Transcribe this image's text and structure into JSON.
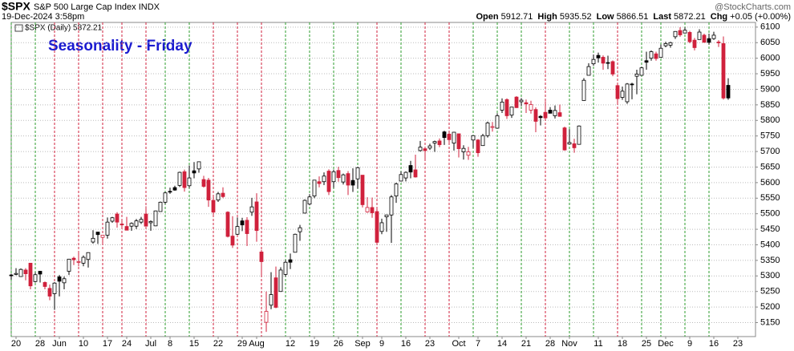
{
  "chart_data": {
    "type": "candlestick",
    "symbol": "$SPX",
    "name": "S&P 500 Large Cap Index",
    "exchange": "INDX",
    "timestamp": "19-Dec-2024 3:58pm",
    "credit": "@StockCharts.com",
    "quote": [
      {
        "label": "Open",
        "value": 5912.71
      },
      {
        "label": "High",
        "value": 5935.52
      },
      {
        "label": "Low",
        "value": 5866.51
      },
      {
        "label": "Last",
        "value": 5872.21
      },
      {
        "label": "Chg",
        "value": "+0.05 (+0.00%)"
      }
    ],
    "legend": "$SPX (Daily) 5872.21",
    "title": "Seasonality - Friday",
    "up_color": "#000000",
    "down_color": "#d0213c",
    "title_color": "#1a1ad0",
    "ylim": [
      5105,
      6115
    ],
    "yticks": [
      5150,
      5200,
      5250,
      5300,
      5350,
      5400,
      5450,
      5500,
      5550,
      5600,
      5650,
      5700,
      5750,
      5800,
      5850,
      5900,
      5950,
      6000,
      6050,
      6100
    ],
    "grid": true,
    "categories": [
      null,
      "20",
      null,
      null,
      null,
      null,
      "28",
      null,
      null,
      null,
      "Jun",
      null,
      null,
      null,
      null,
      "10",
      null,
      null,
      null,
      null,
      "17",
      null,
      null,
      null,
      "24",
      null,
      null,
      null,
      null,
      "Jul",
      null,
      null,
      null,
      "8",
      null,
      null,
      null,
      null,
      "15",
      null,
      null,
      null,
      null,
      "22",
      null,
      null,
      null,
      null,
      "29",
      null,
      null,
      "Aug",
      null,
      null,
      null,
      null,
      null,
      null,
      "12",
      null,
      null,
      null,
      null,
      "19",
      null,
      null,
      null,
      null,
      "26",
      null,
      null,
      null,
      null,
      "Sep",
      null,
      null,
      null,
      "9",
      null,
      null,
      null,
      null,
      "16",
      null,
      null,
      null,
      null,
      "23",
      null,
      null,
      null,
      null,
      null,
      "Oct",
      null,
      null,
      null,
      "7",
      null,
      null,
      null,
      null,
      "14",
      null,
      null,
      null,
      null,
      "21",
      null,
      null,
      null,
      null,
      "28",
      null,
      null,
      null,
      "Nov",
      null,
      null,
      null,
      null,
      null,
      "11",
      null,
      null,
      null,
      null,
      "18",
      null,
      null,
      null,
      null,
      "25",
      null,
      null,
      null,
      "Dec",
      null,
      null,
      null,
      null,
      "9",
      null,
      null,
      null,
      null,
      "16",
      null,
      null,
      null,
      null,
      "23"
    ],
    "ohlc": [
      [
        5303,
        5306,
        5288,
        5303
      ],
      [
        5305,
        5325,
        5302,
        5308
      ],
      [
        5298,
        5324,
        5297,
        5321
      ],
      [
        5319,
        5325,
        5286,
        5307
      ],
      [
        5341,
        5342,
        5257,
        5268
      ],
      [
        5282,
        5311,
        5279,
        5304
      ],
      [
        5315,
        5316,
        5279,
        5306
      ],
      [
        5279,
        5282,
        5257,
        5266
      ],
      [
        5260,
        5272,
        5222,
        5235
      ],
      [
        5243,
        5280,
        5191,
        5277
      ],
      [
        5297,
        5303,
        5234,
        5283
      ],
      [
        5278,
        5298,
        5257,
        5291
      ],
      [
        5315,
        5355,
        5303,
        5354
      ],
      [
        5357,
        5362,
        5335,
        5352
      ],
      [
        5344,
        5376,
        5331,
        5346
      ],
      [
        5341,
        5366,
        5331,
        5360
      ],
      [
        5353,
        5376,
        5327,
        5375
      ],
      [
        5409,
        5447,
        5404,
        5421
      ],
      [
        5441,
        5441,
        5403,
        5433
      ],
      [
        5424,
        5432,
        5403,
        5431
      ],
      [
        5431,
        5488,
        5420,
        5473
      ],
      [
        5476,
        5490,
        5471,
        5487
      ],
      [
        5499,
        5505,
        5455,
        5473
      ],
      [
        5467,
        5479,
        5455,
        5464
      ],
      [
        5459,
        5490,
        5447,
        5447
      ],
      [
        5460,
        5472,
        5445,
        5469
      ],
      [
        5460,
        5483,
        5451,
        5477
      ],
      [
        5473,
        5490,
        5467,
        5482
      ],
      [
        5499,
        5524,
        5460,
        5460
      ],
      [
        5471,
        5479,
        5445,
        5475
      ],
      [
        5461,
        5510,
        5460,
        5509
      ],
      [
        5507,
        5539,
        5507,
        5537
      ],
      [
        5537,
        5570,
        5531,
        5567
      ],
      [
        5572,
        5584,
        5564,
        5572
      ],
      [
        5584,
        5590,
        5574,
        5576
      ],
      [
        5591,
        5635,
        5586,
        5633
      ],
      [
        5635,
        5642,
        5571,
        5584
      ],
      [
        5590,
        5655,
        5583,
        5615
      ],
      [
        5638,
        5666,
        5614,
        5631
      ],
      [
        5644,
        5667,
        5632,
        5667
      ],
      [
        5610,
        5622,
        5584,
        5588
      ],
      [
        5608,
        5615,
        5522,
        5544
      ],
      [
        5543,
        5557,
        5497,
        5505
      ],
      [
        5544,
        5570,
        5538,
        5564
      ],
      [
        5566,
        5585,
        5550,
        5555
      ],
      [
        5505,
        5508,
        5424,
        5427
      ],
      [
        5428,
        5492,
        5390,
        5399
      ],
      [
        5434,
        5488,
        5432,
        5459
      ],
      [
        5477,
        5487,
        5444,
        5464
      ],
      [
        5479,
        5489,
        5396,
        5436
      ],
      [
        5505,
        5551,
        5493,
        5522
      ],
      [
        5538,
        5566,
        5410,
        5446
      ],
      [
        5377,
        5384,
        5303,
        5346
      ],
      [
        5151,
        5250,
        5120,
        5186
      ],
      [
        5206,
        5312,
        5193,
        5240
      ],
      [
        5294,
        5330,
        5196,
        5199
      ],
      [
        5250,
        5328,
        5249,
        5319
      ],
      [
        5305,
        5351,
        5298,
        5344
      ],
      [
        5352,
        5372,
        5322,
        5344
      ],
      [
        5376,
        5436,
        5376,
        5434
      ],
      [
        5442,
        5464,
        5413,
        5455
      ],
      [
        5502,
        5546,
        5501,
        5543
      ],
      [
        5531,
        5563,
        5527,
        5554
      ],
      [
        5557,
        5608,
        5550,
        5608
      ],
      [
        5603,
        5620,
        5585,
        5597
      ],
      [
        5603,
        5633,
        5592,
        5621
      ],
      [
        5637,
        5643,
        5560,
        5571
      ],
      [
        5603,
        5642,
        5583,
        5635
      ],
      [
        5639,
        5651,
        5603,
        5616
      ],
      [
        5602,
        5629,
        5594,
        5625
      ],
      [
        5629,
        5637,
        5560,
        5592
      ],
      [
        5607,
        5646,
        5570,
        5592
      ],
      [
        5612,
        5651,
        5581,
        5648
      ],
      [
        5624,
        5624,
        5520,
        5529
      ],
      [
        5506,
        5553,
        5503,
        5520
      ],
      [
        5520,
        5552,
        5487,
        5503
      ],
      [
        5507,
        5522,
        5402,
        5408
      ],
      [
        5443,
        5484,
        5434,
        5471
      ],
      [
        5490,
        5497,
        5442,
        5496
      ],
      [
        5496,
        5560,
        5406,
        5554
      ],
      [
        5557,
        5600,
        5535,
        5596
      ],
      [
        5605,
        5636,
        5604,
        5626
      ],
      [
        5615,
        5636,
        5604,
        5633
      ],
      [
        5655,
        5670,
        5614,
        5634
      ],
      [
        5641,
        5690,
        5616,
        5618
      ],
      [
        5703,
        5734,
        5700,
        5714
      ],
      [
        5709,
        5715,
        5674,
        5703
      ],
      [
        5711,
        5725,
        5705,
        5718
      ],
      [
        5727,
        5735,
        5699,
        5732
      ],
      [
        5734,
        5742,
        5714,
        5722
      ],
      [
        5763,
        5767,
        5721,
        5745
      ],
      [
        5756,
        5765,
        5729,
        5738
      ],
      [
        5727,
        5763,
        5703,
        5762
      ],
      [
        5757,
        5757,
        5681,
        5709
      ],
      [
        5699,
        5720,
        5674,
        5710
      ],
      [
        5688,
        5715,
        5673,
        5699
      ],
      [
        5737,
        5752,
        5711,
        5751
      ],
      [
        5737,
        5740,
        5683,
        5696
      ],
      [
        5719,
        5757,
        5719,
        5751
      ],
      [
        5751,
        5796,
        5745,
        5792
      ],
      [
        5778,
        5795,
        5764,
        5780
      ],
      [
        5775,
        5823,
        5775,
        5815
      ],
      [
        5833,
        5871,
        5824,
        5859
      ],
      [
        5867,
        5871,
        5805,
        5815
      ],
      [
        5817,
        5843,
        5808,
        5843
      ],
      [
        5875,
        5878,
        5840,
        5841
      ],
      [
        5860,
        5872,
        5846,
        5865
      ],
      [
        5857,
        5867,
        5824,
        5853
      ],
      [
        5833,
        5863,
        5822,
        5851
      ],
      [
        5835,
        5842,
        5762,
        5797
      ],
      [
        5813,
        5817,
        5784,
        5809
      ],
      [
        5826,
        5862,
        5799,
        5808
      ],
      [
        5833,
        5843,
        5823,
        5823
      ],
      [
        5815,
        5848,
        5806,
        5832
      ],
      [
        5825,
        5851,
        5812,
        5813
      ],
      [
        5776,
        5780,
        5703,
        5705
      ],
      [
        5724,
        5772,
        5723,
        5729
      ],
      [
        5725,
        5741,
        5696,
        5712
      ],
      [
        5723,
        5784,
        5722,
        5782
      ],
      [
        5864,
        5936,
        5864,
        5929
      ],
      [
        5945,
        5984,
        5945,
        5973
      ],
      [
        5982,
        6012,
        5976,
        5996
      ],
      [
        6009,
        6018,
        5986,
        6001
      ],
      [
        6003,
        6009,
        5963,
        5984
      ],
      [
        5986,
        6008,
        5965,
        5985
      ],
      [
        5989,
        5993,
        5942,
        5949
      ],
      [
        5912,
        5915,
        5853,
        5870
      ],
      [
        5874,
        5909,
        5866,
        5894
      ],
      [
        5860,
        5920,
        5853,
        5917
      ],
      [
        5917,
        5921,
        5868,
        5917
      ],
      [
        5942,
        5963,
        5884,
        5949
      ],
      [
        5945,
        5972,
        5944,
        5969
      ],
      [
        5992,
        6021,
        5963,
        5987
      ],
      [
        6000,
        6025,
        5992,
        6021
      ],
      [
        6014,
        6021,
        5992,
        5999
      ],
      [
        6003,
        6044,
        6003,
        6032
      ],
      [
        6040,
        6053,
        6035,
        6047
      ],
      [
        6042,
        6053,
        6034,
        6050
      ],
      [
        6069,
        6087,
        6062,
        6086
      ],
      [
        6089,
        6100,
        6069,
        6075
      ],
      [
        6081,
        6099,
        6080,
        6090
      ],
      [
        6083,
        6088,
        6048,
        6053
      ],
      [
        6058,
        6065,
        6025,
        6034
      ],
      [
        6060,
        6093,
        6060,
        6084
      ],
      [
        6074,
        6079,
        6051,
        6051
      ],
      [
        6063,
        6079,
        6044,
        6051
      ],
      [
        6063,
        6085,
        6059,
        6074
      ],
      [
        6052,
        6058,
        6036,
        6051
      ],
      [
        6047,
        6070,
        5867,
        5872
      ],
      [
        5912.71,
        5935.52,
        5866.51,
        5872.21
      ],
      null,
      null
    ],
    "friday_lines": [
      "#2e9e2e",
      null,
      null,
      null,
      null,
      "#2e9e2e",
      null,
      null,
      null,
      "#d0213c",
      null,
      null,
      null,
      null,
      "#d0213c",
      null,
      null,
      null,
      null,
      "#d0213c",
      null,
      null,
      null,
      "#d0213c",
      null,
      null,
      null,
      null,
      "#d0213c",
      null,
      null,
      null,
      "#2e9e2e",
      null,
      null,
      null,
      null,
      "#2e9e2e",
      null,
      null,
      null,
      null,
      "#d0213c",
      null,
      null,
      null,
      null,
      "#d0213c",
      null,
      null,
      null,
      null,
      "#d0213c",
      null,
      null,
      null,
      null,
      "#2e9e2e",
      null,
      null,
      null,
      null,
      "#2e9e2e",
      null,
      null,
      null,
      null,
      "#2e9e2e",
      null,
      null,
      null,
      null,
      "#2e9e2e",
      null,
      null,
      null,
      "#d0213c",
      null,
      null,
      null,
      null,
      "#2e9e2e",
      null,
      null,
      null,
      null,
      "#d0213c",
      null,
      null,
      null,
      null,
      "#d0213c",
      null,
      null,
      null,
      null,
      "#2e9e2e",
      null,
      null,
      null,
      null,
      "#2e9e2e",
      null,
      null,
      null,
      null,
      "#2e9e2e",
      null,
      null,
      null,
      null,
      "#d0213c",
      null,
      null,
      null,
      null,
      "#2e9e2e",
      null,
      null,
      null,
      null,
      "#2e9e2e",
      null,
      null,
      null,
      null,
      "#d0213c",
      null,
      null,
      null,
      null,
      "#2e9e2e",
      null,
      null,
      null,
      "#2e9e2e",
      null,
      null,
      null,
      null,
      "#2e9e2e",
      null,
      null,
      null,
      null,
      "#2e9e2e",
      null,
      null,
      null,
      null,
      null,
      null
    ]
  }
}
